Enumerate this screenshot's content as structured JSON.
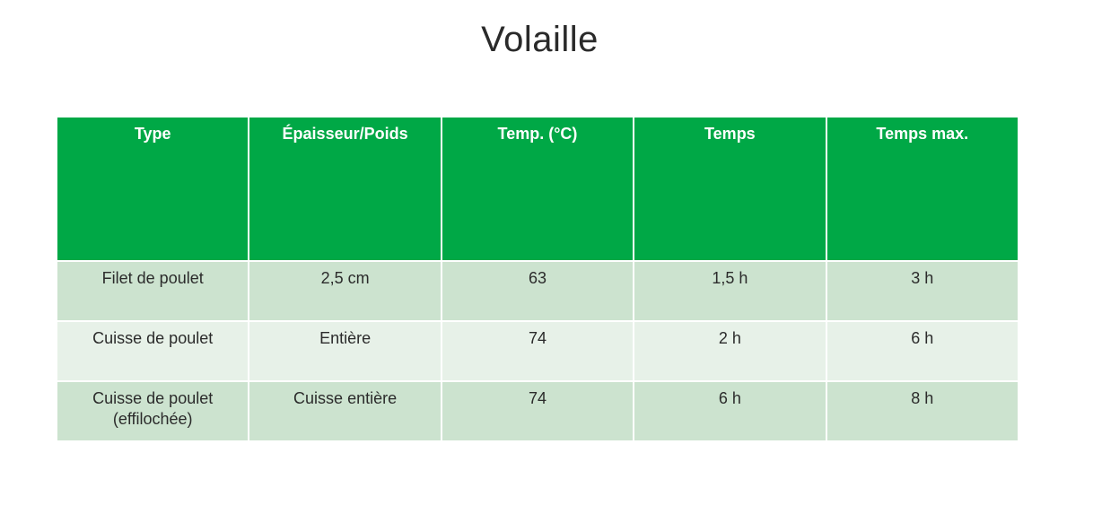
{
  "title": "Volaille",
  "table": {
    "headers": [
      "Type",
      "Épaisseur/Poids",
      "Temp. (°C)",
      "Temps",
      "Temps max."
    ],
    "rows": [
      [
        "Filet de poulet",
        "2,5 cm",
        "63",
        "1,5 h",
        "3 h"
      ],
      [
        "Cuisse de poulet",
        "Entière",
        "74",
        "2 h",
        "6 h"
      ],
      [
        "Cuisse de poulet (effilochée)",
        "Cuisse entière",
        "74",
        "6 h",
        "8 h"
      ]
    ]
  },
  "colors": {
    "header_bg": "#00a846",
    "row_dark": "#cce3cf",
    "row_light": "#e7f1e8"
  }
}
